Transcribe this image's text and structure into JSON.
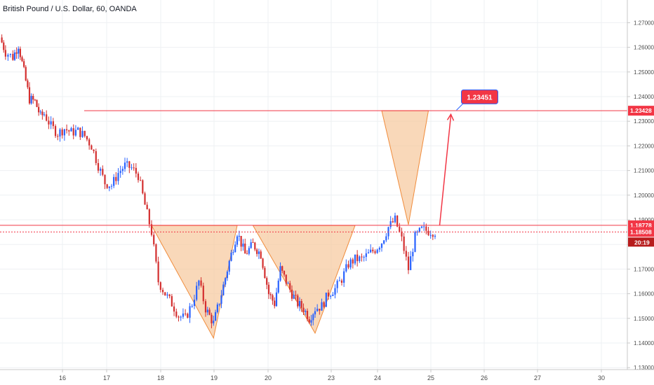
{
  "header": {
    "title": "British Pound / U.S. Dollar, 60, OANDA"
  },
  "chart_data": {
    "type": "candlestick",
    "ylim": [
      1.1275,
      1.2775
    ],
    "y_ticks": [
      "1.27000",
      "1.26000",
      "1.25000",
      "1.24000",
      "1.23000",
      "1.22000",
      "1.21000",
      "1.20000",
      "1.19000",
      "1.18000",
      "1.17000",
      "1.16000",
      "1.15000",
      "1.14000",
      "1.13000"
    ],
    "x_ticks": [
      "16",
      "17",
      "18",
      "19",
      "20",
      "23",
      "24",
      "25",
      "26",
      "27",
      "30"
    ],
    "series": [
      {
        "anchors": [
          [
            "16-00",
            1.264
          ],
          [
            "16-03",
            1.258
          ],
          [
            "16-07",
            1.256
          ],
          [
            "16-10",
            1.261
          ],
          [
            "16-13",
            1.25
          ],
          [
            "16-16",
            1.239
          ],
          [
            "16-19",
            1.238
          ],
          [
            "16-22",
            1.232
          ],
          [
            "17-00",
            1.233
          ],
          [
            "17-03",
            1.228
          ],
          [
            "17-06",
            1.225
          ],
          [
            "17-09",
            1.227
          ],
          [
            "17-12",
            1.2255
          ],
          [
            "17-15",
            1.226
          ],
          [
            "17-18",
            1.224
          ],
          [
            "17-21",
            1.22
          ],
          [
            "18-00",
            1.212
          ],
          [
            "18-03",
            1.205
          ],
          [
            "18-06",
            1.204
          ],
          [
            "18-09",
            1.209
          ],
          [
            "18-12",
            1.212
          ],
          [
            "18-15",
            1.211
          ],
          [
            "18-18",
            1.208
          ],
          [
            "18-21",
            1.196
          ],
          [
            "19-00",
            1.185
          ],
          [
            "19-03",
            1.165
          ],
          [
            "19-06",
            1.16
          ],
          [
            "19-09",
            1.156
          ],
          [
            "19-12",
            1.151
          ],
          [
            "19-15",
            1.15
          ],
          [
            "19-18",
            1.156
          ],
          [
            "19-21",
            1.165
          ],
          [
            "20-00",
            1.154
          ],
          [
            "20-03",
            1.148
          ],
          [
            "20-06",
            1.16
          ],
          [
            "20-09",
            1.173
          ],
          [
            "20-12",
            1.185
          ],
          [
            "20-15",
            1.176
          ],
          [
            "20-18",
            1.18
          ],
          [
            "20-21",
            1.176
          ],
          [
            "23-00",
            1.16
          ],
          [
            "23-03",
            1.156
          ],
          [
            "23-06",
            1.17
          ],
          [
            "23-09",
            1.165
          ],
          [
            "23-12",
            1.16
          ],
          [
            "23-15",
            1.156
          ],
          [
            "23-18",
            1.154
          ],
          [
            "23-21",
            1.15
          ],
          [
            "24-00",
            1.154
          ],
          [
            "24-03",
            1.155
          ],
          [
            "24-06",
            1.16
          ],
          [
            "24-09",
            1.162
          ],
          [
            "24-12",
            1.166
          ],
          [
            "24-15",
            1.172
          ],
          [
            "24-18",
            1.174
          ],
          [
            "24-21",
            1.174
          ],
          [
            "25-00",
            1.176
          ],
          [
            "25-03",
            1.178
          ],
          [
            "25-06",
            1.181
          ],
          [
            "25-09",
            1.187
          ],
          [
            "25-12",
            1.19
          ],
          [
            "25-15",
            1.182
          ],
          [
            "25-18",
            1.17
          ],
          [
            "25-21",
            1.183
          ],
          [
            "26-00",
            1.186
          ],
          [
            "26-03",
            1.1855
          ],
          [
            "26-06",
            1.1851
          ]
        ]
      }
    ],
    "annotations": {
      "h_lines": [
        {
          "label": "1.23428",
          "value": 1.23428
        },
        {
          "label": "1.18778",
          "value": 1.18778
        },
        {
          "label": "1.18508",
          "value": 1.18508
        }
      ],
      "countdown": "20:19",
      "target_callout": "1.23451",
      "patterns": [
        {
          "name": "triangle-a",
          "points": [
            [
              "19",
              1.1877
            ],
            [
              "20-12",
              1.1877
            ],
            [
              "20-03",
              1.142
            ]
          ]
        },
        {
          "name": "triangle-b",
          "points": [
            [
              "20-18",
              1.1877
            ],
            [
              "24-18",
              1.1877
            ],
            [
              "24-00",
              1.144
            ]
          ]
        },
        {
          "name": "triangle-c",
          "points": [
            [
              "25-06",
              1.2343
            ],
            [
              "26-03",
              1.2343
            ],
            [
              "25-18",
              1.188
            ]
          ]
        }
      ]
    }
  },
  "colors": {
    "bull": "#2962ff",
    "bear": "#d32f2f",
    "line": "#f23645",
    "triangle_fill": "#f7c79b",
    "triangle_stroke": "#f08c3c",
    "countdown_bg": "#b71c1c"
  }
}
